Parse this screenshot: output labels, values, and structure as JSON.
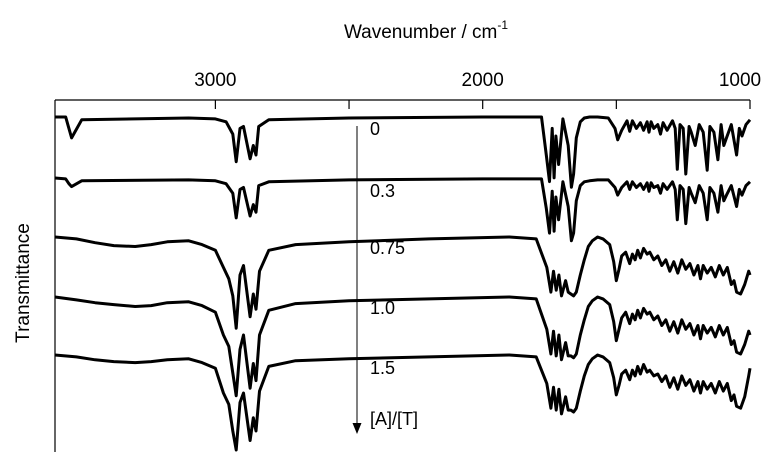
{
  "chart_data": {
    "type": "line",
    "title": "",
    "xlabel": "Wavenumber / cm",
    "xlabel_superscript": "-1",
    "ylabel": "Transmittance",
    "xlim": [
      3600,
      1000
    ],
    "x_reversed": true,
    "x_ticks": [
      3000,
      2000,
      1000
    ],
    "x_tick_labels": [
      "3000",
      "2000",
      "1000"
    ],
    "y_ticks": "none",
    "grid": false,
    "legend": "none",
    "line_color": "#000000",
    "annotations": {
      "arrow_label": "[A]/[T]",
      "series_labels": [
        "0",
        "0.3",
        "0.75",
        "1.0",
        "1.5"
      ]
    },
    "series": [
      {
        "label": "0",
        "x": [
          3600,
          3560,
          3548,
          3538,
          3500,
          3100,
          3000,
          2960,
          2935,
          2922,
          2908,
          2895,
          2870,
          2858,
          2848,
          2838,
          2800,
          2500,
          2000,
          1780,
          1762,
          1750,
          1740,
          1733,
          1726,
          1716,
          1700,
          1680,
          1668,
          1660,
          1650,
          1635,
          1620,
          1600,
          1570,
          1530,
          1505,
          1495,
          1480,
          1460,
          1450,
          1440,
          1425,
          1410,
          1398,
          1385,
          1378,
          1370,
          1360,
          1345,
          1335,
          1325,
          1310,
          1290,
          1280,
          1272,
          1262,
          1250,
          1240,
          1228,
          1220,
          1205,
          1190,
          1175,
          1160,
          1150,
          1135,
          1120,
          1108,
          1098,
          1088,
          1070,
          1050,
          1040,
          1030,
          1015,
          1000
        ],
        "y": [
          0,
          0,
          12,
          22,
          3,
          1,
          2,
          5,
          18,
          47,
          12,
          10,
          44,
          30,
          40,
          10,
          3,
          1,
          0,
          0,
          40,
          68,
          12,
          64,
          20,
          50,
          2,
          30,
          74,
          60,
          22,
          5,
          1,
          0,
          0,
          1,
          12,
          24,
          14,
          4,
          15,
          4,
          12,
          6,
          14,
          5,
          16,
          5,
          12,
          8,
          18,
          6,
          14,
          4,
          12,
          55,
          8,
          12,
          60,
          10,
          16,
          30,
          8,
          16,
          56,
          10,
          16,
          45,
          8,
          30,
          22,
          8,
          40,
          12,
          20,
          8,
          3
        ]
      },
      {
        "label": "0.3",
        "x": [
          3600,
          3560,
          3548,
          3538,
          3500,
          3100,
          3000,
          2960,
          2935,
          2922,
          2908,
          2895,
          2870,
          2858,
          2848,
          2838,
          2800,
          2500,
          2000,
          1780,
          1762,
          1750,
          1740,
          1733,
          1726,
          1716,
          1700,
          1680,
          1668,
          1660,
          1650,
          1635,
          1620,
          1600,
          1570,
          1530,
          1505,
          1495,
          1480,
          1460,
          1450,
          1440,
          1425,
          1410,
          1398,
          1385,
          1378,
          1370,
          1360,
          1345,
          1335,
          1325,
          1310,
          1290,
          1280,
          1272,
          1262,
          1250,
          1240,
          1228,
          1220,
          1205,
          1190,
          1175,
          1160,
          1150,
          1135,
          1120,
          1108,
          1098,
          1088,
          1070,
          1050,
          1040,
          1030,
          1015,
          1000
        ],
        "y": [
          0,
          1,
          6,
          9,
          3,
          2,
          3,
          6,
          16,
          42,
          12,
          10,
          40,
          28,
          36,
          8,
          4,
          2,
          1,
          1,
          32,
          58,
          14,
          56,
          20,
          44,
          4,
          30,
          66,
          58,
          24,
          8,
          4,
          3,
          2,
          2,
          10,
          18,
          10,
          4,
          12,
          4,
          10,
          6,
          12,
          5,
          14,
          5,
          10,
          8,
          16,
          6,
          12,
          4,
          12,
          44,
          8,
          12,
          48,
          10,
          16,
          26,
          8,
          16,
          44,
          10,
          16,
          36,
          8,
          24,
          18,
          8,
          30,
          12,
          18,
          8,
          4
        ]
      },
      {
        "label": "0.75",
        "x": [
          3600,
          3520,
          3450,
          3380,
          3300,
          3240,
          3180,
          3100,
          3050,
          3000,
          2970,
          2950,
          2935,
          2922,
          2908,
          2895,
          2870,
          2858,
          2848,
          2835,
          2800,
          2700,
          2500,
          2200,
          1900,
          1800,
          1760,
          1745,
          1735,
          1725,
          1715,
          1705,
          1690,
          1680,
          1670,
          1660,
          1650,
          1635,
          1620,
          1605,
          1590,
          1570,
          1550,
          1525,
          1510,
          1500,
          1490,
          1480,
          1465,
          1450,
          1440,
          1430,
          1420,
          1410,
          1398,
          1385,
          1375,
          1360,
          1345,
          1330,
          1315,
          1300,
          1285,
          1270,
          1255,
          1240,
          1225,
          1210,
          1195,
          1185,
          1175,
          1160,
          1145,
          1130,
          1115,
          1100,
          1085,
          1070,
          1060,
          1050,
          1035,
          1020,
          1005,
          1000
        ],
        "y": [
          0,
          2,
          6,
          9,
          10,
          8,
          5,
          4,
          8,
          14,
          32,
          44,
          62,
          96,
          40,
          30,
          84,
          60,
          76,
          36,
          14,
          8,
          5,
          2,
          0,
          2,
          32,
          58,
          36,
          56,
          40,
          62,
          46,
          58,
          60,
          62,
          58,
          40,
          24,
          10,
          4,
          0,
          2,
          8,
          26,
          46,
          34,
          20,
          16,
          28,
          18,
          24,
          14,
          22,
          12,
          18,
          16,
          24,
          20,
          30,
          24,
          36,
          26,
          38,
          24,
          34,
          28,
          40,
          30,
          44,
          30,
          38,
          32,
          42,
          30,
          40,
          32,
          50,
          46,
          58,
          60,
          50,
          36,
          40
        ]
      },
      {
        "label": "1.0",
        "x": [
          3600,
          3520,
          3450,
          3380,
          3300,
          3240,
          3180,
          3100,
          3050,
          3000,
          2970,
          2950,
          2935,
          2922,
          2908,
          2895,
          2870,
          2858,
          2848,
          2835,
          2800,
          2700,
          2500,
          2200,
          1900,
          1800,
          1760,
          1745,
          1735,
          1725,
          1715,
          1705,
          1690,
          1680,
          1670,
          1660,
          1650,
          1635,
          1620,
          1605,
          1590,
          1570,
          1550,
          1525,
          1510,
          1500,
          1490,
          1480,
          1465,
          1450,
          1440,
          1430,
          1420,
          1410,
          1398,
          1385,
          1375,
          1360,
          1345,
          1330,
          1315,
          1300,
          1285,
          1270,
          1255,
          1240,
          1225,
          1210,
          1195,
          1185,
          1175,
          1160,
          1145,
          1130,
          1115,
          1100,
          1085,
          1070,
          1060,
          1050,
          1035,
          1020,
          1005,
          1000
        ],
        "y": [
          0,
          3,
          6,
          8,
          10,
          9,
          6,
          5,
          9,
          16,
          40,
          52,
          80,
          104,
          55,
          40,
          96,
          70,
          88,
          40,
          14,
          7,
          4,
          2,
          0,
          2,
          34,
          60,
          36,
          62,
          40,
          66,
          48,
          62,
          62,
          64,
          60,
          40,
          24,
          10,
          4,
          0,
          2,
          8,
          26,
          46,
          34,
          22,
          16,
          28,
          18,
          24,
          14,
          22,
          12,
          18,
          16,
          24,
          20,
          30,
          24,
          36,
          26,
          38,
          24,
          34,
          28,
          40,
          30,
          44,
          30,
          38,
          32,
          42,
          30,
          40,
          32,
          50,
          46,
          58,
          60,
          50,
          36,
          40
        ]
      },
      {
        "label": "1.5",
        "x": [
          3600,
          3520,
          3450,
          3380,
          3300,
          3240,
          3180,
          3100,
          3050,
          3000,
          2970,
          2950,
          2935,
          2922,
          2908,
          2895,
          2870,
          2858,
          2848,
          2835,
          2800,
          2700,
          2500,
          2200,
          1900,
          1800,
          1760,
          1745,
          1735,
          1725,
          1715,
          1705,
          1690,
          1680,
          1670,
          1660,
          1650,
          1635,
          1620,
          1605,
          1590,
          1570,
          1550,
          1525,
          1510,
          1500,
          1490,
          1480,
          1465,
          1450,
          1440,
          1430,
          1420,
          1410,
          1398,
          1385,
          1375,
          1360,
          1345,
          1330,
          1315,
          1300,
          1285,
          1270,
          1255,
          1240,
          1225,
          1210,
          1195,
          1185,
          1175,
          1160,
          1145,
          1130,
          1115,
          1100,
          1085,
          1070,
          1060,
          1050,
          1035,
          1020,
          1005,
          1000
        ],
        "y": [
          0,
          2,
          5,
          7,
          8,
          7,
          5,
          4,
          8,
          14,
          40,
          52,
          80,
          100,
          50,
          40,
          90,
          66,
          80,
          38,
          12,
          6,
          4,
          2,
          0,
          2,
          30,
          56,
          34,
          58,
          36,
          62,
          44,
          58,
          58,
          60,
          56,
          38,
          22,
          10,
          4,
          0,
          2,
          8,
          24,
          42,
          32,
          20,
          16,
          26,
          16,
          22,
          12,
          20,
          10,
          18,
          16,
          22,
          20,
          28,
          22,
          34,
          24,
          36,
          22,
          32,
          26,
          38,
          28,
          40,
          28,
          36,
          30,
          40,
          28,
          38,
          30,
          48,
          42,
          54,
          56,
          44,
          22,
          14
        ]
      }
    ]
  }
}
